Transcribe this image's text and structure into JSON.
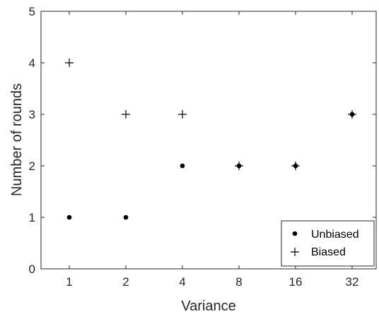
{
  "chart_data": {
    "type": "scatter",
    "categories": [
      "1",
      "2",
      "4",
      "8",
      "16",
      "32"
    ],
    "xlabel": "Variance",
    "ylabel": "Number of rounds",
    "ylim": [
      0,
      5
    ],
    "yticks": [
      0,
      1,
      2,
      3,
      4,
      5
    ],
    "grid": false,
    "legend_position": "bottom-right",
    "series": [
      {
        "name": "Unbiased",
        "marker": "dot",
        "values": [
          1,
          1,
          2,
          2,
          2,
          3
        ]
      },
      {
        "name": "Biased",
        "marker": "plus",
        "values": [
          4,
          3,
          3,
          2,
          2,
          3
        ]
      }
    ],
    "colors": {
      "axis": "#262626",
      "marker": "#000000",
      "background": "#ffffff"
    }
  }
}
